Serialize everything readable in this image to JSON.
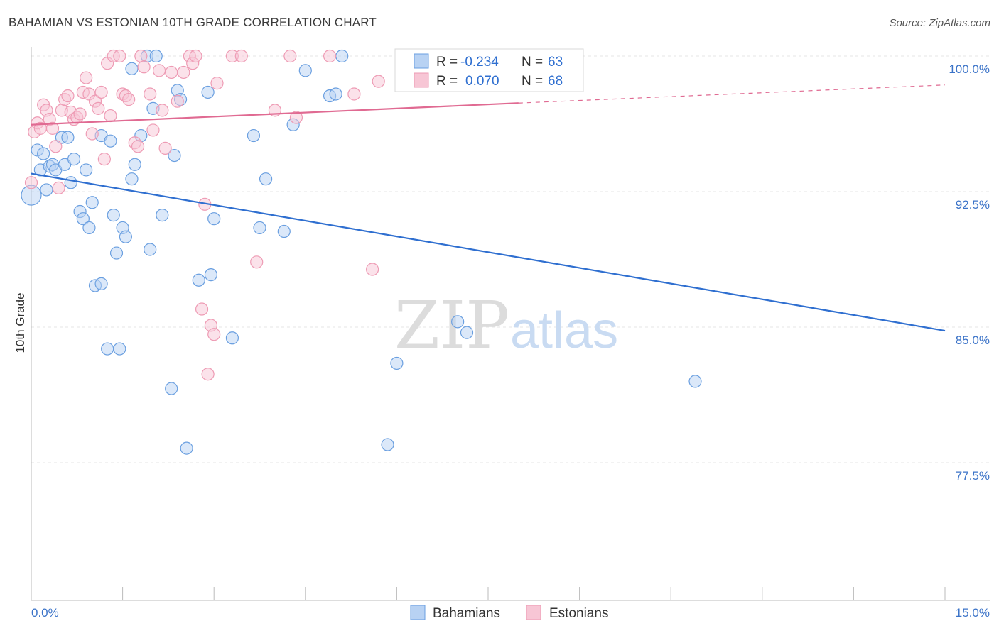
{
  "title": "BAHAMIAN VS ESTONIAN 10TH GRADE CORRELATION CHART",
  "source": "Source: ZipAtlas.com",
  "watermark": {
    "zip": "ZIP",
    "atlas": "atlas"
  },
  "chart_data": {
    "type": "scatter",
    "title": "BAHAMIAN VS ESTONIAN 10TH GRADE CORRELATION CHART",
    "xlabel": "",
    "ylabel": "10th Grade",
    "xlim": [
      0,
      15
    ],
    "ylim": [
      70.0,
      101.0
    ],
    "x_tick_labels": {
      "min": "0.0%",
      "max": "15.0%"
    },
    "y_ticks": [
      {
        "value": 100.0,
        "label": "100.0%"
      },
      {
        "value": 92.5,
        "label": "92.5%"
      },
      {
        "value": 85.0,
        "label": "85.0%"
      },
      {
        "value": 77.5,
        "label": "77.5%"
      }
    ],
    "grid": true,
    "legend_position": "top-center",
    "stats": [
      {
        "r_label": "R = ",
        "r_value": "-0.234",
        "n_label": "N = ",
        "n_value": "63"
      },
      {
        "r_label": "R = ",
        "r_value": "0.070",
        "n_label": "N = ",
        "n_value": "68"
      }
    ],
    "series": [
      {
        "name": "Bahamians",
        "color": "#6a9fe0",
        "fill": "#b8d2f3",
        "trend": {
          "x0": 0.0,
          "y0": 93.5,
          "x1": 15.0,
          "y1": 84.8,
          "color": "#2f6fd0"
        },
        "points": [
          [
            0.0,
            92.3
          ],
          [
            0.1,
            94.8
          ],
          [
            0.15,
            93.7
          ],
          [
            0.2,
            94.6
          ],
          [
            0.25,
            92.6
          ],
          [
            0.3,
            93.9
          ],
          [
            0.35,
            94.0
          ],
          [
            0.4,
            93.7
          ],
          [
            0.5,
            95.5
          ],
          [
            0.55,
            94.0
          ],
          [
            0.6,
            95.5
          ],
          [
            0.65,
            93.0
          ],
          [
            0.7,
            94.3
          ],
          [
            0.8,
            91.4
          ],
          [
            0.85,
            91.0
          ],
          [
            0.9,
            93.7
          ],
          [
            0.95,
            90.5
          ],
          [
            1.0,
            91.9
          ],
          [
            1.05,
            87.3
          ],
          [
            1.15,
            87.4
          ],
          [
            1.15,
            95.6
          ],
          [
            1.25,
            83.8
          ],
          [
            1.3,
            95.3
          ],
          [
            1.35,
            91.2
          ],
          [
            1.4,
            89.1
          ],
          [
            1.45,
            83.8
          ],
          [
            1.5,
            90.5
          ],
          [
            1.55,
            90.0
          ],
          [
            1.65,
            99.3
          ],
          [
            1.65,
            93.2
          ],
          [
            1.7,
            94.0
          ],
          [
            1.8,
            95.6
          ],
          [
            1.9,
            100.0
          ],
          [
            1.95,
            89.3
          ],
          [
            2.0,
            97.1
          ],
          [
            2.05,
            100.0
          ],
          [
            2.15,
            91.2
          ],
          [
            2.3,
            81.6
          ],
          [
            2.35,
            94.5
          ],
          [
            2.4,
            98.1
          ],
          [
            2.45,
            97.6
          ],
          [
            2.55,
            78.3
          ],
          [
            2.75,
            87.6
          ],
          [
            2.9,
            98.0
          ],
          [
            2.95,
            87.9
          ],
          [
            3.0,
            91.0
          ],
          [
            3.3,
            84.4
          ],
          [
            3.65,
            95.6
          ],
          [
            3.75,
            90.5
          ],
          [
            3.85,
            93.2
          ],
          [
            4.15,
            90.3
          ],
          [
            4.3,
            96.2
          ],
          [
            4.5,
            99.2
          ],
          [
            4.9,
            97.8
          ],
          [
            5.0,
            97.9
          ],
          [
            5.1,
            100.0
          ],
          [
            5.85,
            78.5
          ],
          [
            6.0,
            83.0
          ],
          [
            7.0,
            85.3
          ],
          [
            7.15,
            84.7
          ],
          [
            7.5,
            100.0
          ],
          [
            7.8,
            100.0
          ],
          [
            10.9,
            82.0
          ]
        ]
      },
      {
        "name": "Estonians",
        "color": "#ee9bb4",
        "fill": "#f7c6d5",
        "trend": {
          "x0": 0.0,
          "y0": 96.2,
          "x1": 8.0,
          "y1": 97.4,
          "color": "#e06a92"
        },
        "trend_dashed": {
          "x0": 8.0,
          "y0": 97.4,
          "x1": 15.0,
          "y1": 98.4
        },
        "points": [
          [
            0.0,
            93.0
          ],
          [
            0.05,
            95.8
          ],
          [
            0.1,
            96.3
          ],
          [
            0.15,
            96.0
          ],
          [
            0.2,
            97.3
          ],
          [
            0.25,
            97.0
          ],
          [
            0.3,
            96.5
          ],
          [
            0.35,
            96.0
          ],
          [
            0.4,
            95.0
          ],
          [
            0.45,
            92.7
          ],
          [
            0.5,
            97.0
          ],
          [
            0.55,
            97.6
          ],
          [
            0.6,
            97.8
          ],
          [
            0.65,
            96.9
          ],
          [
            0.7,
            96.5
          ],
          [
            0.75,
            96.6
          ],
          [
            0.8,
            96.8
          ],
          [
            0.85,
            98.0
          ],
          [
            0.9,
            98.8
          ],
          [
            0.95,
            97.9
          ],
          [
            1.0,
            95.7
          ],
          [
            1.05,
            97.5
          ],
          [
            1.1,
            97.1
          ],
          [
            1.15,
            98.0
          ],
          [
            1.2,
            94.3
          ],
          [
            1.25,
            99.6
          ],
          [
            1.3,
            96.7
          ],
          [
            1.35,
            100.0
          ],
          [
            1.45,
            100.0
          ],
          [
            1.5,
            97.9
          ],
          [
            1.55,
            97.8
          ],
          [
            1.6,
            97.6
          ],
          [
            1.7,
            95.2
          ],
          [
            1.75,
            95.0
          ],
          [
            1.8,
            100.0
          ],
          [
            1.85,
            99.4
          ],
          [
            1.95,
            97.9
          ],
          [
            2.0,
            95.9
          ],
          [
            2.1,
            99.2
          ],
          [
            2.15,
            97.0
          ],
          [
            2.2,
            94.9
          ],
          [
            2.3,
            99.1
          ],
          [
            2.4,
            97.5
          ],
          [
            2.5,
            99.1
          ],
          [
            2.6,
            100.0
          ],
          [
            2.65,
            99.6
          ],
          [
            2.7,
            100.0
          ],
          [
            2.8,
            86.0
          ],
          [
            2.85,
            91.8
          ],
          [
            2.9,
            82.4
          ],
          [
            2.95,
            85.1
          ],
          [
            3.0,
            84.6
          ],
          [
            3.05,
            98.5
          ],
          [
            3.3,
            100.0
          ],
          [
            3.45,
            100.0
          ],
          [
            3.7,
            88.6
          ],
          [
            4.0,
            97.0
          ],
          [
            4.25,
            100.0
          ],
          [
            4.35,
            96.6
          ],
          [
            4.9,
            100.0
          ],
          [
            5.3,
            97.9
          ],
          [
            5.6,
            88.2
          ],
          [
            5.7,
            98.6
          ],
          [
            6.1,
            100.0
          ],
          [
            6.3,
            100.0
          ],
          [
            6.6,
            98.9
          ],
          [
            7.7,
            100.0
          ],
          [
            8.0,
            100.0
          ]
        ]
      }
    ]
  }
}
